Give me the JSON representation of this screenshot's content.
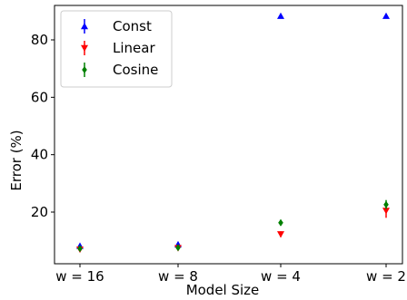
{
  "chart_data": {
    "type": "scatter",
    "title": "",
    "xlabel": "Model Size",
    "ylabel": "Error (%)",
    "categories": [
      "w = 16",
      "w = 8",
      "w = 4",
      "w = 2"
    ],
    "ylim": [
      2,
      92
    ],
    "yticks": [
      20,
      40,
      60,
      80
    ],
    "grid": false,
    "legend_position": "top-left",
    "series": [
      {
        "name": "Const",
        "marker": "triangle-up",
        "color": "#0000ff",
        "values": [
          8.2,
          8.7,
          88.3,
          88.3
        ],
        "errors": [
          0.6,
          0.6,
          0.4,
          0.4
        ]
      },
      {
        "name": "Linear",
        "marker": "triangle-down",
        "color": "#ff0000",
        "values": [
          7.0,
          7.5,
          12.3,
          20.5
        ],
        "errors": [
          0.5,
          0.5,
          1.0,
          2.5
        ]
      },
      {
        "name": "Cosine",
        "marker": "diamond",
        "color": "#008000",
        "values": [
          7.3,
          7.6,
          16.3,
          22.6
        ],
        "errors": [
          0.4,
          0.4,
          1.0,
          1.6
        ]
      }
    ]
  }
}
